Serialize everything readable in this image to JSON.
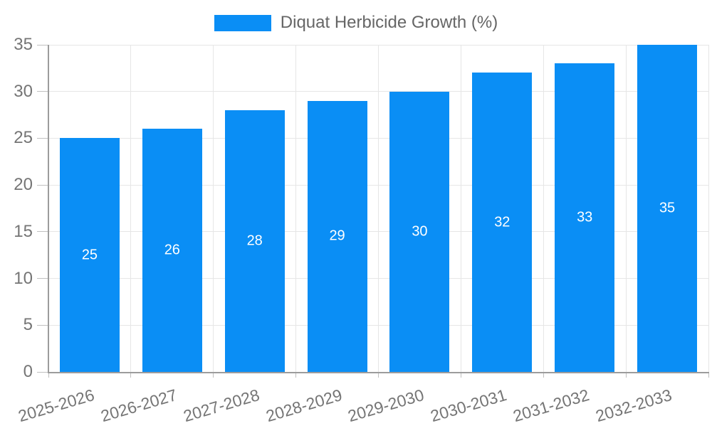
{
  "legend": {
    "label": "Diquat Herbicide Growth (%)"
  },
  "chart_data": {
    "type": "bar",
    "title": "",
    "xlabel": "",
    "ylabel": "",
    "legend_entries": [
      "Diquat Herbicide Growth (%)"
    ],
    "legend_position": "top-center",
    "categories": [
      "2025-2026",
      "2026-2027",
      "2027-2028",
      "2028-2029",
      "2029-2030",
      "2030-2031",
      "2031-2032",
      "2032-2033"
    ],
    "series": [
      {
        "name": "Diquat Herbicide Growth (%)",
        "values": [
          25,
          26,
          28,
          29,
          30,
          32,
          33,
          35
        ]
      }
    ],
    "values": [
      25,
      26,
      28,
      29,
      30,
      32,
      33,
      35
    ],
    "value_labels_shown": true,
    "ylim": [
      0,
      35
    ],
    "yticks": [
      0,
      5,
      10,
      15,
      20,
      25,
      30,
      35
    ],
    "grid": "both",
    "x_label_rotation_deg": -16.5,
    "colors": {
      "bar": "#0a8ef5",
      "value_label": "#ffffff",
      "axis_text": "#757575",
      "legend_text": "#666666",
      "gridline": "#e6e6e6",
      "tick": "#c0c0c0",
      "axis_line": "#9c9c9c",
      "background": "#ffffff"
    }
  }
}
